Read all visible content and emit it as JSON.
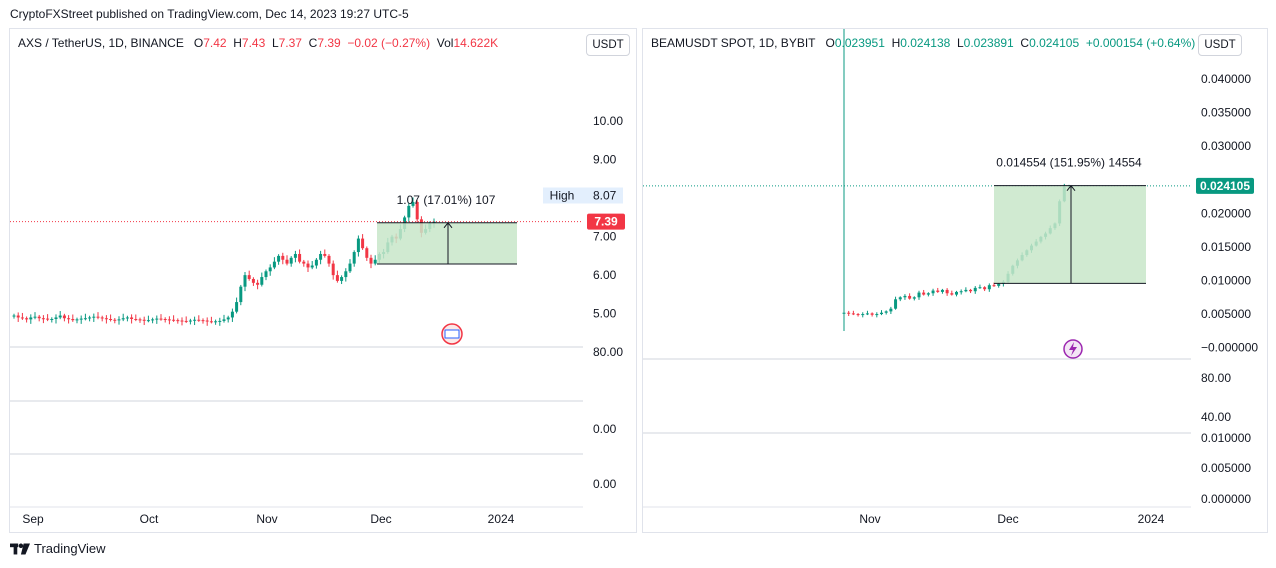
{
  "header": {
    "text": "CryptoFXStreet published on TradingView.com, Dec 14, 2023 19:27 UTC-5"
  },
  "footer": {
    "brand": "TradingView"
  },
  "colors": {
    "up": "#089981",
    "down": "#f23645",
    "range_fill": "#c8e6c9",
    "axis_text": "#131722",
    "grid": "#f0f3fa"
  },
  "chart_data": [
    {
      "type": "candlestick",
      "title": "AXS / TetherUS, 1D, BINANCE",
      "ohlc_legend": {
        "o_label": "O",
        "o": "7.42",
        "h_label": "H",
        "h": "7.43",
        "l_label": "L",
        "l": "7.37",
        "c_label": "C",
        "c": "7.39",
        "change": "−0.02 (−0.27%)",
        "vol_label": "Vol",
        "vol": "14.622K"
      },
      "currency_button": "USDT",
      "price_axis_ticks": [
        "10.00",
        "9.00",
        "8.07",
        "7.00",
        "6.00",
        "5.00"
      ],
      "price_range": [
        4.6,
        10.5
      ],
      "tags": {
        "high_label": "High",
        "high_value": "8.07",
        "last_value": "7.39"
      },
      "measure_label": "1.07 (17.01%) 107",
      "measure": {
        "from_price": 6.29,
        "to_price": 7.36
      },
      "indicator_axis_ticks": [
        "80.00",
        "0.00",
        "0.00"
      ],
      "time_axis": [
        "Sep",
        "Oct",
        "Nov",
        "Dec",
        "2024"
      ],
      "close_series": [
        4.95,
        4.9,
        4.88,
        4.85,
        4.9,
        4.92,
        4.88,
        4.87,
        4.85,
        4.86,
        4.9,
        4.95,
        4.88,
        4.86,
        4.83,
        4.85,
        4.87,
        4.88,
        4.9,
        4.92,
        4.9,
        4.88,
        4.86,
        4.84,
        4.83,
        4.85,
        4.88,
        4.9,
        4.86,
        4.85,
        4.84,
        4.82,
        4.83,
        4.85,
        4.87,
        4.86,
        4.85,
        4.84,
        4.83,
        4.82,
        4.81,
        4.8,
        4.82,
        4.84,
        4.83,
        4.82,
        4.8,
        4.79,
        4.8,
        4.81,
        4.85,
        4.9,
        5.05,
        5.3,
        5.7,
        6.0,
        5.9,
        5.8,
        5.75,
        5.95,
        6.1,
        6.2,
        6.35,
        6.5,
        6.4,
        6.3,
        6.45,
        6.55,
        6.35,
        6.3,
        6.2,
        6.25,
        6.4,
        6.55,
        6.5,
        6.3,
        6.0,
        5.85,
        5.95,
        6.1,
        6.3,
        6.6,
        6.95,
        6.7,
        6.45,
        6.3,
        6.4,
        6.55,
        6.6,
        6.85,
        7.0,
        6.95,
        7.2,
        7.5,
        7.8,
        7.9,
        7.45,
        7.1,
        7.2,
        7.35,
        7.39
      ]
    },
    {
      "type": "candlestick",
      "title": "BEAMUSDT SPOT, 1D, BYBIT",
      "ohlc_legend": {
        "o_label": "O",
        "o": "0.023951",
        "h_label": "H",
        "h": "0.024138",
        "l_label": "L",
        "l": "0.023891",
        "c_label": "C",
        "c": "0.024105",
        "change": "+0.000154 (+0.64%)"
      },
      "currency_button": "USDT",
      "price_axis_ticks": [
        "0.040000",
        "0.035000",
        "0.030000",
        "0.020000",
        "0.015000",
        "0.010000",
        "0.005000",
        "−0.000000"
      ],
      "price_range": [
        -0.0005,
        0.0415
      ],
      "tags": {
        "last_value": "0.024105"
      },
      "measure_label": "0.014554 (151.95%) 14554",
      "measure": {
        "from_price": 0.00958,
        "to_price": 0.02413
      },
      "indicator_axis_ticks": [
        "80.00",
        "40.00"
      ],
      "volume_axis_ticks": [
        "0.010000",
        "0.005000",
        "0.000000"
      ],
      "time_axis": [
        "Nov",
        "Dec",
        "2024"
      ],
      "close_series": [
        0.0052,
        0.0051,
        0.005,
        0.0049,
        0.005,
        0.0051,
        0.0049,
        0.005,
        0.0052,
        0.0054,
        0.0058,
        0.0072,
        0.0075,
        0.0077,
        0.0073,
        0.0075,
        0.0082,
        0.0079,
        0.0081,
        0.0085,
        0.0083,
        0.0086,
        0.0081,
        0.0079,
        0.0083,
        0.0084,
        0.0086,
        0.0084,
        0.0089,
        0.009,
        0.0087,
        0.0093,
        0.0092,
        0.0095,
        0.0098,
        0.011,
        0.0122,
        0.013,
        0.0138,
        0.0145,
        0.0152,
        0.0158,
        0.0165,
        0.017,
        0.0178,
        0.0185,
        0.0218,
        0.024,
        0.0241
      ]
    }
  ]
}
